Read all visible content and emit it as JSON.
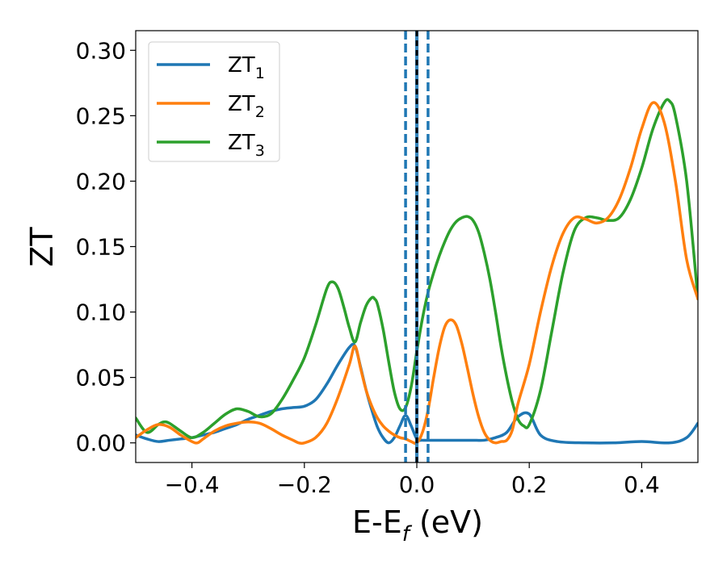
{
  "chart_data": {
    "type": "line",
    "xlabel": "E-E",
    "xlabel_sub": "f",
    "xlabel_unit": "(eV)",
    "ylabel": "ZT",
    "xlim": [
      -0.5,
      0.5
    ],
    "ylim": [
      -0.015,
      0.315
    ],
    "x_ticks": [
      -0.4,
      -0.2,
      0.0,
      0.2,
      0.4
    ],
    "x_tick_labels": [
      "−0.4",
      "−0.2",
      "0.0",
      "0.2",
      "0.4"
    ],
    "y_ticks": [
      0.0,
      0.05,
      0.1,
      0.15,
      0.2,
      0.25,
      0.3
    ],
    "y_tick_labels": [
      "0.00",
      "0.05",
      "0.10",
      "0.15",
      "0.20",
      "0.25",
      "0.30"
    ],
    "grid": false,
    "legend_position": "top-left",
    "series": [
      {
        "name": "ZT",
        "name_sub": "1",
        "color": "#1f77b4",
        "x": [
          -0.5,
          -0.48,
          -0.46,
          -0.44,
          -0.42,
          -0.4,
          -0.38,
          -0.36,
          -0.34,
          -0.32,
          -0.3,
          -0.28,
          -0.26,
          -0.24,
          -0.22,
          -0.2,
          -0.18,
          -0.16,
          -0.14,
          -0.12,
          -0.11,
          -0.1,
          -0.09,
          -0.08,
          -0.07,
          -0.06,
          -0.05,
          -0.04,
          -0.03,
          -0.02,
          -0.01,
          0.0,
          0.01,
          0.02,
          0.03,
          0.05,
          0.08,
          0.1,
          0.12,
          0.14,
          0.16,
          0.18,
          0.2,
          0.22,
          0.25,
          0.3,
          0.35,
          0.4,
          0.45,
          0.48,
          0.5
        ],
        "y": [
          0.006,
          0.003,
          0.001,
          0.002,
          0.003,
          0.004,
          0.006,
          0.008,
          0.011,
          0.014,
          0.018,
          0.021,
          0.024,
          0.026,
          0.027,
          0.028,
          0.033,
          0.045,
          0.06,
          0.073,
          0.074,
          0.058,
          0.04,
          0.025,
          0.012,
          0.004,
          0.0,
          0.004,
          0.013,
          0.021,
          0.013,
          0.003,
          0.002,
          0.002,
          0.002,
          0.002,
          0.002,
          0.002,
          0.002,
          0.004,
          0.008,
          0.02,
          0.022,
          0.006,
          0.001,
          0.0,
          0.0,
          0.001,
          0.0,
          0.004,
          0.015
        ]
      },
      {
        "name": "ZT",
        "name_sub": "2",
        "color": "#ff7f0e",
        "x": [
          -0.5,
          -0.48,
          -0.46,
          -0.44,
          -0.42,
          -0.4,
          -0.39,
          -0.38,
          -0.36,
          -0.34,
          -0.32,
          -0.3,
          -0.28,
          -0.26,
          -0.24,
          -0.22,
          -0.21,
          -0.2,
          -0.18,
          -0.16,
          -0.14,
          -0.12,
          -0.11,
          -0.1,
          -0.09,
          -0.08,
          -0.07,
          -0.06,
          -0.05,
          -0.04,
          -0.03,
          -0.02,
          -0.01,
          0.0,
          0.01,
          0.02,
          0.03,
          0.04,
          0.05,
          0.06,
          0.07,
          0.08,
          0.09,
          0.1,
          0.11,
          0.12,
          0.13,
          0.14,
          0.15,
          0.16,
          0.17,
          0.18,
          0.2,
          0.22,
          0.24,
          0.26,
          0.28,
          0.3,
          0.32,
          0.34,
          0.36,
          0.38,
          0.4,
          0.42,
          0.44,
          0.46,
          0.48,
          0.5
        ],
        "y": [
          0.004,
          0.01,
          0.014,
          0.012,
          0.006,
          0.001,
          0.0,
          0.003,
          0.009,
          0.013,
          0.015,
          0.016,
          0.015,
          0.011,
          0.006,
          0.002,
          0.0,
          0.0,
          0.004,
          0.015,
          0.035,
          0.06,
          0.074,
          0.057,
          0.04,
          0.028,
          0.019,
          0.013,
          0.009,
          0.006,
          0.004,
          0.003,
          0.001,
          0.0,
          0.008,
          0.025,
          0.05,
          0.073,
          0.089,
          0.094,
          0.09,
          0.076,
          0.057,
          0.037,
          0.02,
          0.008,
          0.002,
          0.0,
          0.001,
          0.002,
          0.01,
          0.03,
          0.06,
          0.1,
          0.135,
          0.16,
          0.172,
          0.171,
          0.168,
          0.172,
          0.186,
          0.21,
          0.24,
          0.26,
          0.245,
          0.2,
          0.14,
          0.11
        ]
      },
      {
        "name": "ZT",
        "name_sub": "3",
        "color": "#2ca02c",
        "x": [
          -0.5,
          -0.48,
          -0.46,
          -0.45,
          -0.44,
          -0.42,
          -0.4,
          -0.38,
          -0.36,
          -0.34,
          -0.32,
          -0.3,
          -0.28,
          -0.26,
          -0.24,
          -0.22,
          -0.2,
          -0.18,
          -0.16,
          -0.15,
          -0.14,
          -0.13,
          -0.12,
          -0.11,
          -0.1,
          -0.09,
          -0.08,
          -0.075,
          -0.07,
          -0.06,
          -0.05,
          -0.04,
          -0.03,
          -0.02,
          -0.01,
          0.0,
          0.01,
          0.02,
          0.03,
          0.04,
          0.05,
          0.06,
          0.07,
          0.08,
          0.09,
          0.1,
          0.11,
          0.12,
          0.13,
          0.14,
          0.15,
          0.16,
          0.17,
          0.18,
          0.19,
          0.2,
          0.22,
          0.24,
          0.26,
          0.28,
          0.3,
          0.32,
          0.34,
          0.36,
          0.38,
          0.4,
          0.42,
          0.44,
          0.45,
          0.46,
          0.48,
          0.5
        ],
        "y": [
          0.019,
          0.008,
          0.014,
          0.016,
          0.015,
          0.009,
          0.004,
          0.008,
          0.015,
          0.022,
          0.026,
          0.024,
          0.02,
          0.022,
          0.033,
          0.048,
          0.065,
          0.09,
          0.118,
          0.123,
          0.118,
          0.104,
          0.088,
          0.077,
          0.092,
          0.105,
          0.111,
          0.11,
          0.106,
          0.087,
          0.062,
          0.039,
          0.026,
          0.027,
          0.043,
          0.07,
          0.095,
          0.115,
          0.13,
          0.143,
          0.154,
          0.163,
          0.169,
          0.172,
          0.173,
          0.17,
          0.161,
          0.145,
          0.125,
          0.1,
          0.073,
          0.05,
          0.031,
          0.018,
          0.013,
          0.014,
          0.04,
          0.085,
          0.13,
          0.162,
          0.172,
          0.172,
          0.17,
          0.172,
          0.186,
          0.21,
          0.24,
          0.26,
          0.261,
          0.25,
          0.2,
          0.11
        ]
      }
    ],
    "annotations": {
      "solid_vlines": [
        {
          "x": 0.0,
          "color": "#000000",
          "style": "dashed"
        }
      ],
      "dashed_vlines": [
        {
          "x": -0.02,
          "color": "#1f77b4"
        },
        {
          "x": 0.02,
          "color": "#1f77b4"
        }
      ],
      "band": {
        "x0": -0.003,
        "x1": 0.003,
        "color": "#1f77b4"
      }
    }
  }
}
